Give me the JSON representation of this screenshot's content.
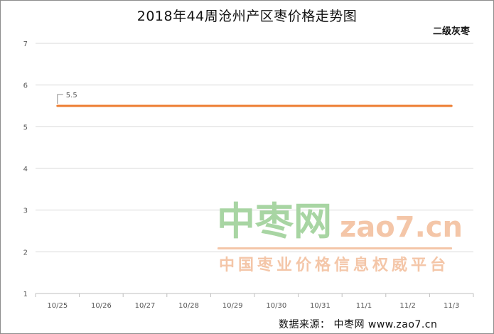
{
  "title": "2018年44周沧州产区枣价格走势图",
  "series_label": "二级灰枣",
  "source": "数据来源：  中枣网 www.zao7.cn",
  "watermark": {
    "logo_cn": "中枣网",
    "logo_en": "zao7.cn",
    "slogan": "中国枣业价格信息权威平台"
  },
  "colors": {
    "line": "#ed7d31",
    "grid": "#d9d9d9",
    "watermark_green": "#a8d5a3",
    "watermark_orange": "#f4c6a8"
  },
  "chart_data": {
    "type": "line",
    "title": "2018年44周沧州产区枣价格走势图",
    "categories": [
      "10/25",
      "10/26",
      "10/27",
      "10/28",
      "10/29",
      "10/30",
      "10/31",
      "11/1",
      "11/2",
      "11/3"
    ],
    "series": [
      {
        "name": "二级灰枣",
        "values": [
          5.5,
          5.5,
          5.5,
          5.5,
          5.5,
          5.5,
          5.5,
          5.5,
          5.5,
          5.5
        ],
        "color": "#ed7d31"
      }
    ],
    "data_labels": [
      {
        "index": 0,
        "text": "5.5"
      }
    ],
    "yticks": [
      "1",
      "2",
      "3",
      "4",
      "5",
      "6",
      "7"
    ],
    "ylim": [
      1,
      7
    ],
    "grid": true,
    "legend": "top-right"
  }
}
